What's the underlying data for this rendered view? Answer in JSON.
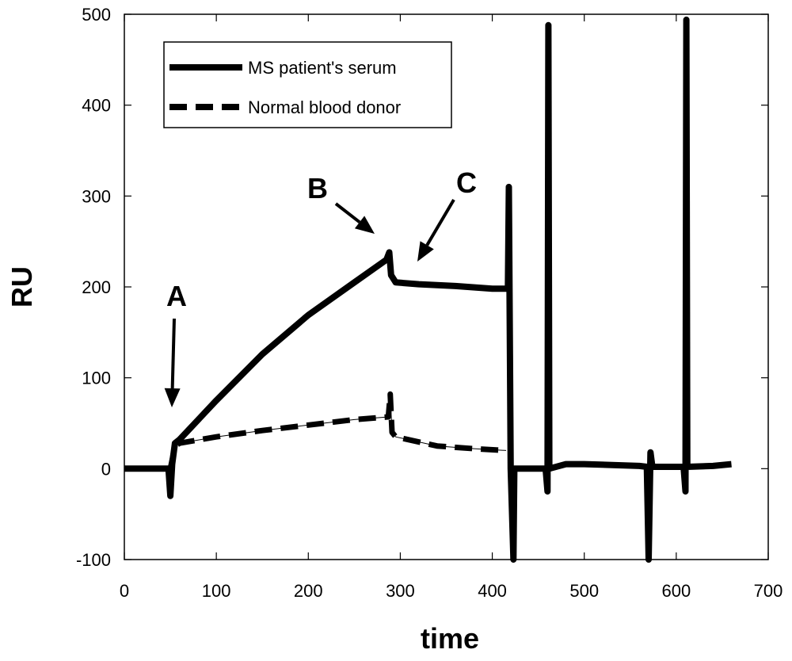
{
  "chart_data": {
    "type": "line",
    "title": "",
    "xlabel": "time",
    "ylabel": "RU",
    "xlim": [
      0,
      700
    ],
    "ylim": [
      -100,
      500
    ],
    "xticks": [
      0,
      100,
      200,
      300,
      400,
      500,
      600,
      700
    ],
    "yticks": [
      -100,
      0,
      100,
      200,
      300,
      400,
      500
    ],
    "grid": false,
    "legend_position": "top-left",
    "series": [
      {
        "name": "MS patient's serum",
        "style": "solid",
        "points": [
          [
            0,
            0
          ],
          [
            48,
            0
          ],
          [
            50,
            -30
          ],
          [
            52,
            5
          ],
          [
            55,
            28
          ],
          [
            60,
            32
          ],
          [
            100,
            75
          ],
          [
            150,
            126
          ],
          [
            200,
            169
          ],
          [
            250,
            205
          ],
          [
            285,
            230
          ],
          [
            288,
            238
          ],
          [
            290,
            213
          ],
          [
            295,
            205
          ],
          [
            320,
            203
          ],
          [
            360,
            201
          ],
          [
            400,
            198
          ],
          [
            417,
            198
          ],
          [
            418,
            310
          ],
          [
            420,
            0
          ],
          [
            423,
            -100
          ],
          [
            424,
            0
          ],
          [
            458,
            0
          ],
          [
            460,
            -25
          ],
          [
            461,
            488
          ],
          [
            462,
            0
          ],
          [
            480,
            5
          ],
          [
            500,
            5
          ],
          [
            560,
            3
          ],
          [
            568,
            2
          ],
          [
            570,
            -100
          ],
          [
            572,
            18
          ],
          [
            574,
            2
          ],
          [
            608,
            2
          ],
          [
            610,
            -25
          ],
          [
            611,
            494
          ],
          [
            612,
            2
          ],
          [
            640,
            3
          ],
          [
            660,
            5
          ]
        ]
      },
      {
        "name": "Normal blood donor",
        "style": "dashed",
        "points": [
          [
            50,
            0
          ],
          [
            55,
            25
          ],
          [
            60,
            28
          ],
          [
            100,
            35
          ],
          [
            150,
            42
          ],
          [
            200,
            48
          ],
          [
            250,
            54
          ],
          [
            287,
            57
          ],
          [
            289,
            82
          ],
          [
            291,
            40
          ],
          [
            295,
            35
          ],
          [
            340,
            25
          ],
          [
            380,
            22
          ],
          [
            415,
            20
          ]
        ]
      }
    ],
    "annotations": [
      {
        "label": "A",
        "x": 50,
        "y": 25
      },
      {
        "label": "B",
        "x": 285,
        "y": 234
      },
      {
        "label": "C",
        "x": 300,
        "y": 208
      }
    ]
  }
}
